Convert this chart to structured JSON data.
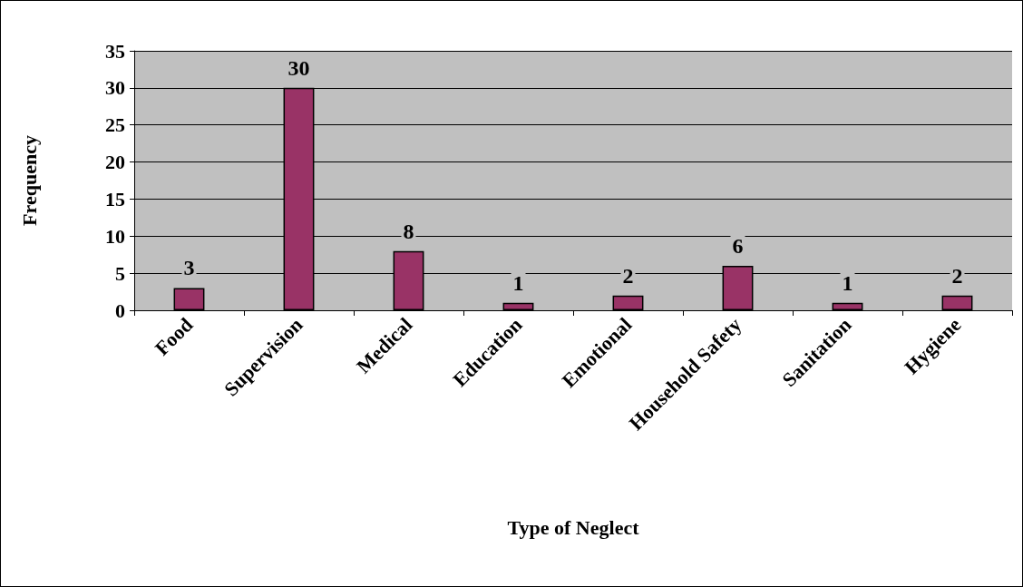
{
  "chart_data": {
    "type": "bar",
    "xlabel": "Type of Neglect",
    "ylabel": "Frequency",
    "categories": [
      "Food",
      "Supervision",
      "Medical",
      "Education",
      "Emotional",
      "Household Safety",
      "Sanitation",
      "Hygiene"
    ],
    "values": [
      3,
      30,
      8,
      1,
      2,
      6,
      1,
      2
    ],
    "color": "#993366",
    "ylim": [
      0,
      35
    ],
    "yticks": [
      0,
      5,
      10,
      15,
      20,
      25,
      30,
      35
    ],
    "grid": "y",
    "data_labels": true
  }
}
